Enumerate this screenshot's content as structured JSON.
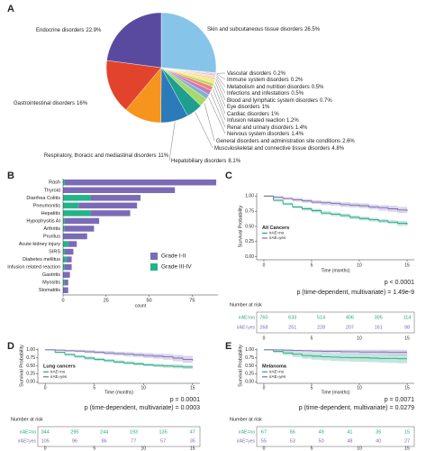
{
  "chart_data": [
    {
      "type": "pie",
      "panel": "A",
      "categories": [
        "Skin and subcutaneous tissue disorders",
        "Vascular disorders",
        "Immune system disorders",
        "Metabolism and nutrition disorders",
        "Infections and infestations",
        "Blood and lymphatic system disorders",
        "Eye disorders",
        "Cardiac disorders",
        "Infusion related reaction",
        "Renal and urinary disorders",
        "Nervous system disorders",
        "General disorders and administration site conditions",
        "Musculoskeletal and connective tissue disorders",
        "Hepatobiliary disorders",
        "Respiratory, thoracic and mediastinal disorders",
        "Gastrointestinal disorders",
        "Endocrine disorders"
      ],
      "values": [
        26.5,
        0.2,
        0.2,
        0.5,
        0.5,
        0.7,
        1,
        1,
        1.2,
        1.4,
        1.4,
        2.6,
        4.8,
        8.1,
        11,
        16,
        22.9
      ],
      "value_labels": [
        "26.5%",
        "0.2%",
        "0.2%",
        "0.5%",
        "0.5%",
        "0.7%",
        "1%",
        "1%",
        "1.2%",
        "1.4%",
        "1.4%",
        "2.6%",
        "4.8%",
        "8.1%",
        "11%",
        "16%",
        "22.9%"
      ],
      "colors": [
        "#86c5e9",
        "#f4a3c0",
        "#d94e8f",
        "#f7b6d2",
        "#c7e9c0",
        "#fdd0a2",
        "#ffe680",
        "#b3de69",
        "#fb8072",
        "#bc80bd",
        "#80b1d3",
        "#a6d96a",
        "#1d9e8f",
        "#2b7bba",
        "#f7941d",
        "#e2432c",
        "#5a4a9f"
      ]
    },
    {
      "type": "bar",
      "panel": "B",
      "orientation": "horizontal",
      "stacked": true,
      "categories": [
        "Rash",
        "Thyroid",
        "Diarrhea Colitis",
        "Pneumonitis",
        "Hepatitis",
        "Hypophysitis AI",
        "Arthritis",
        "Pruritus",
        "Acute kidney injury",
        "SIRS",
        "Diabetes mellitus",
        "Infusion related reaction",
        "Gastritis",
        "Myositis",
        "Stomatitis"
      ],
      "series": [
        {
          "name": "Grade I-II",
          "color": "#7b6bb7",
          "values": [
            88,
            65,
            29,
            34,
            23,
            20,
            17,
            14,
            5,
            5,
            3,
            4,
            4,
            2,
            3
          ]
        },
        {
          "name": "Grade III-IV",
          "color": "#22b38a",
          "values": [
            1,
            0,
            16,
            9,
            16,
            1,
            1,
            0,
            3,
            1,
            2,
            1,
            0,
            1,
            0
          ]
        }
      ],
      "xlabel": "count",
      "xlim": [
        0,
        90
      ],
      "xticks": [
        0,
        25,
        50,
        75
      ],
      "legend": "lower right"
    },
    {
      "type": "survival",
      "panel": "C",
      "annotation": "All Cancers",
      "ylabel": "Survival Probability",
      "xlabel": "Time (months)",
      "x": [
        0,
        1,
        2,
        3,
        4,
        5,
        6,
        7,
        8,
        9,
        10,
        11,
        12,
        13,
        14,
        15
      ],
      "xlim": [
        -0.75,
        15.75
      ],
      "xticks": [
        0,
        5,
        10,
        15
      ],
      "ylim": [
        -0.05,
        1.05
      ],
      "yticks": [
        {
          "value": 0,
          "label": "0.00"
        },
        {
          "value": 0.25,
          "label": "0.25"
        },
        {
          "value": 0.5,
          "label": "0.50"
        },
        {
          "value": 0.75,
          "label": "0.75"
        },
        {
          "value": 1,
          "label": "1.00"
        }
      ],
      "series": [
        {
          "name": "irAE=no",
          "color": "#24a783",
          "values": [
            1,
            0.93,
            0.87,
            0.82,
            0.79,
            0.76,
            0.72,
            0.7,
            0.68,
            0.65,
            0.63,
            0.61,
            0.59,
            0.57,
            0.55,
            0.53
          ],
          "lower": [
            1,
            0.91,
            0.85,
            0.8,
            0.76,
            0.73,
            0.69,
            0.67,
            0.65,
            0.62,
            0.6,
            0.58,
            0.56,
            0.54,
            0.51,
            0.49
          ],
          "upper": [
            1,
            0.95,
            0.89,
            0.84,
            0.82,
            0.79,
            0.75,
            0.73,
            0.71,
            0.68,
            0.66,
            0.64,
            0.62,
            0.6,
            0.59,
            0.57
          ]
        },
        {
          "name": "irAE=yes",
          "color": "#7a6bb5",
          "values": [
            1,
            0.98,
            0.96,
            0.94,
            0.92,
            0.9,
            0.89,
            0.88,
            0.86,
            0.85,
            0.84,
            0.82,
            0.81,
            0.79,
            0.77,
            0.75
          ],
          "lower": [
            1,
            0.96,
            0.94,
            0.91,
            0.89,
            0.87,
            0.85,
            0.84,
            0.82,
            0.81,
            0.8,
            0.78,
            0.76,
            0.74,
            0.72,
            0.69
          ],
          "upper": [
            1,
            1,
            0.98,
            0.97,
            0.95,
            0.93,
            0.92,
            0.91,
            0.9,
            0.89,
            0.88,
            0.86,
            0.85,
            0.84,
            0.82,
            0.81
          ]
        }
      ],
      "p_value": "p < 0.0001",
      "p_multivariate": "p (time-dependent, multivariate) = 1.49e-9",
      "risk_title": "Number at risk",
      "risk": [
        [
          760,
          633,
          514,
          406,
          305,
          114
        ],
        [
          268,
          251,
          228,
          207,
          161,
          98
        ]
      ]
    },
    {
      "type": "survival",
      "panel": "D",
      "annotation": "Lung cancers",
      "ylabel": "Survival Probability",
      "xlabel": "Time (months)",
      "x": [
        0,
        1,
        2,
        3,
        4,
        5,
        6,
        7,
        8,
        9,
        10,
        11,
        12,
        13,
        14,
        15
      ],
      "xlim": [
        -0.75,
        15.75
      ],
      "xticks": [
        0,
        5,
        10,
        15
      ],
      "ylim": [
        -0.05,
        1.05
      ],
      "yticks": [
        {
          "value": 0,
          "label": "0.00"
        },
        {
          "value": 0.25,
          "label": "0.25"
        },
        {
          "value": 0.5,
          "label": "0.50"
        },
        {
          "value": 0.75,
          "label": "0.75"
        },
        {
          "value": 1,
          "label": "1.00"
        }
      ],
      "series": [
        {
          "name": "irAE=no",
          "color": "#24a783",
          "values": [
            1,
            0.92,
            0.85,
            0.79,
            0.74,
            0.7,
            0.66,
            0.62,
            0.59,
            0.56,
            0.53,
            0.51,
            0.49,
            0.48,
            0.46,
            0.45
          ],
          "lower": [
            1,
            0.89,
            0.81,
            0.75,
            0.69,
            0.65,
            0.61,
            0.57,
            0.54,
            0.51,
            0.48,
            0.46,
            0.44,
            0.42,
            0.4,
            0.38
          ],
          "upper": [
            1,
            0.95,
            0.89,
            0.83,
            0.79,
            0.75,
            0.71,
            0.67,
            0.64,
            0.61,
            0.58,
            0.56,
            0.55,
            0.54,
            0.52,
            0.52
          ]
        },
        {
          "name": "irAE=yes",
          "color": "#7a6bb5",
          "values": [
            1,
            0.99,
            0.97,
            0.96,
            0.94,
            0.92,
            0.9,
            0.88,
            0.86,
            0.84,
            0.82,
            0.8,
            0.78,
            0.74,
            0.7,
            0.66
          ],
          "lower": [
            1,
            0.97,
            0.94,
            0.92,
            0.89,
            0.87,
            0.84,
            0.82,
            0.79,
            0.77,
            0.74,
            0.72,
            0.69,
            0.64,
            0.59,
            0.54
          ],
          "upper": [
            1,
            1,
            1,
            1,
            0.99,
            0.97,
            0.96,
            0.94,
            0.93,
            0.91,
            0.9,
            0.88,
            0.87,
            0.84,
            0.81,
            0.78
          ]
        }
      ],
      "p_value": "p = 0.0001",
      "p_multivariate": "p (time-dependent, multivariate) = 0.0003",
      "risk_title": "Number at risk",
      "risk": [
        [
          344,
          295,
          244,
          193,
          135,
          47
        ],
        [
          105,
          96,
          86,
          77,
          57,
          35
        ]
      ]
    },
    {
      "type": "survival",
      "panel": "E",
      "annotation": "Melanoma",
      "ylabel": "Survival Probability",
      "xlabel": "Time (months)",
      "x": [
        0,
        1,
        2,
        3,
        4,
        5,
        6,
        7,
        8,
        9,
        10,
        11,
        12,
        13,
        14,
        15
      ],
      "xlim": [
        -0.75,
        15.75
      ],
      "xticks": [
        0,
        5,
        10,
        15
      ],
      "ylim": [
        -0.05,
        1.05
      ],
      "yticks": [
        {
          "value": 0,
          "label": "0.00"
        },
        {
          "value": 0.25,
          "label": "0.25"
        },
        {
          "value": 0.5,
          "label": "0.50"
        },
        {
          "value": 0.75,
          "label": "0.75"
        },
        {
          "value": 1,
          "label": "1.00"
        }
      ],
      "series": [
        {
          "name": "irAE=no",
          "color": "#24a783",
          "values": [
            1,
            0.95,
            0.9,
            0.86,
            0.82,
            0.8,
            0.78,
            0.77,
            0.76,
            0.75,
            0.75,
            0.74,
            0.73,
            0.73,
            0.72,
            0.72
          ],
          "lower": [
            1,
            0.9,
            0.83,
            0.77,
            0.72,
            0.69,
            0.67,
            0.65,
            0.64,
            0.63,
            0.62,
            0.61,
            0.6,
            0.59,
            0.58,
            0.57
          ],
          "upper": [
            1,
            1,
            0.97,
            0.94,
            0.91,
            0.9,
            0.89,
            0.88,
            0.87,
            0.87,
            0.87,
            0.86,
            0.86,
            0.86,
            0.86,
            0.86
          ]
        },
        {
          "name": "irAE=yes",
          "color": "#7a6bb5",
          "values": [
            1,
            1,
            0.99,
            0.98,
            0.97,
            0.96,
            0.95,
            0.95,
            0.94,
            0.94,
            0.93,
            0.93,
            0.93,
            0.92,
            0.92,
            0.92
          ],
          "lower": [
            1,
            1,
            0.96,
            0.94,
            0.92,
            0.91,
            0.89,
            0.89,
            0.87,
            0.87,
            0.86,
            0.86,
            0.85,
            0.84,
            0.84,
            0.84
          ],
          "upper": [
            1,
            1,
            1,
            1,
            1,
            1,
            1,
            1,
            1,
            1,
            1,
            1,
            1,
            1,
            1,
            1
          ]
        }
      ],
      "p_value": "p = 0.0071",
      "p_multivariate": "p (time-dependent, multivariate) = 0.0279",
      "risk_title": "Number at risk",
      "risk": [
        [
          67,
          56,
          49,
          41,
          35,
          15
        ],
        [
          55,
          53,
          50,
          48,
          40,
          27
        ]
      ]
    }
  ]
}
